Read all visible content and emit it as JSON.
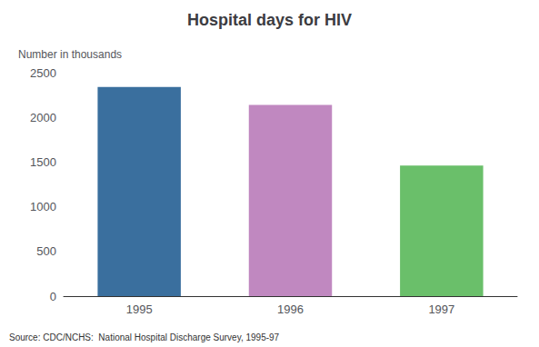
{
  "chart_data": {
    "type": "bar",
    "title": "Hospital days for HIV",
    "ylabel": "Number in thousands",
    "categories": [
      "1995",
      "1996",
      "1997"
    ],
    "values": [
      2340,
      2140,
      1460
    ],
    "colors": [
      "#3a6f9e",
      "#c088c0",
      "#6abf6a"
    ],
    "ylim": [
      0,
      2500
    ],
    "yticks": [
      0,
      500,
      1000,
      1500,
      2000,
      2500
    ],
    "grid": false,
    "annotations": [
      "Source: CDC/NCHS:  National Hospital Discharge Survey, 1995-97"
    ]
  }
}
